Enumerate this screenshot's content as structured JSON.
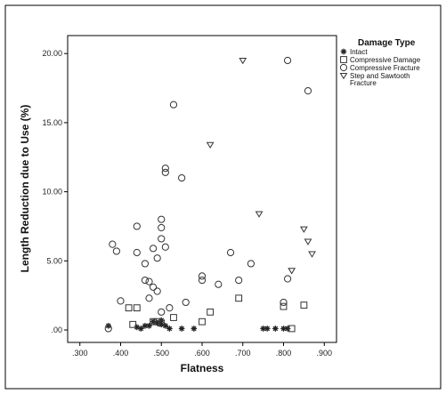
{
  "chart_data": {
    "type": "scatter",
    "title": "",
    "xlabel": "Flatness",
    "ylabel": "Length Reduction due to Use (%)",
    "xlim": [
      0.27,
      0.93
    ],
    "ylim": [
      -0.9,
      21.3
    ],
    "xticks": [
      ".300",
      ".400",
      ".500",
      ".600",
      ".700",
      ".800",
      ".900"
    ],
    "yticks": [
      ".00",
      "5.00",
      "10.00",
      "15.00",
      "20.00"
    ],
    "legend": {
      "title": "Damage Type",
      "position": "top-right"
    },
    "colors": {
      "marker_stroke": "#333333",
      "asterisk": "#222222",
      "frame": "#000000"
    },
    "series": [
      {
        "name": "Intact",
        "marker": "asterisk",
        "points": [
          [
            0.37,
            0.3
          ],
          [
            0.44,
            0.2
          ],
          [
            0.45,
            0.1
          ],
          [
            0.46,
            0.3
          ],
          [
            0.47,
            0.3
          ],
          [
            0.48,
            0.6
          ],
          [
            0.49,
            0.5
          ],
          [
            0.5,
            0.4
          ],
          [
            0.5,
            0.7
          ],
          [
            0.51,
            0.3
          ],
          [
            0.52,
            0.1
          ],
          [
            0.55,
            0.1
          ],
          [
            0.58,
            0.1
          ],
          [
            0.75,
            0.1
          ],
          [
            0.76,
            0.1
          ],
          [
            0.78,
            0.1
          ],
          [
            0.8,
            0.1
          ],
          [
            0.81,
            0.1
          ]
        ]
      },
      {
        "name": "Compressive Damage",
        "marker": "square",
        "points": [
          [
            0.42,
            1.6
          ],
          [
            0.43,
            0.4
          ],
          [
            0.44,
            1.6
          ],
          [
            0.48,
            0.6
          ],
          [
            0.49,
            0.6
          ],
          [
            0.5,
            0.5
          ],
          [
            0.53,
            0.9
          ],
          [
            0.6,
            0.6
          ],
          [
            0.62,
            1.3
          ],
          [
            0.69,
            2.3
          ],
          [
            0.8,
            1.7
          ],
          [
            0.82,
            0.1
          ],
          [
            0.85,
            1.8
          ]
        ]
      },
      {
        "name": "Compressive Fracture",
        "marker": "circle",
        "points": [
          [
            0.37,
            0.1
          ],
          [
            0.38,
            6.2
          ],
          [
            0.39,
            5.7
          ],
          [
            0.4,
            2.1
          ],
          [
            0.44,
            7.5
          ],
          [
            0.44,
            5.6
          ],
          [
            0.46,
            4.8
          ],
          [
            0.46,
            3.6
          ],
          [
            0.47,
            2.3
          ],
          [
            0.47,
            3.5
          ],
          [
            0.48,
            3.1
          ],
          [
            0.48,
            5.9
          ],
          [
            0.49,
            5.2
          ],
          [
            0.49,
            2.8
          ],
          [
            0.5,
            6.6
          ],
          [
            0.5,
            7.4
          ],
          [
            0.5,
            8.0
          ],
          [
            0.5,
            1.3
          ],
          [
            0.51,
            6.0
          ],
          [
            0.51,
            11.7
          ],
          [
            0.51,
            11.4
          ],
          [
            0.52,
            1.6
          ],
          [
            0.53,
            16.3
          ],
          [
            0.55,
            11.0
          ],
          [
            0.56,
            2.0
          ],
          [
            0.6,
            3.6
          ],
          [
            0.6,
            3.9
          ],
          [
            0.64,
            3.3
          ],
          [
            0.67,
            5.6
          ],
          [
            0.69,
            3.6
          ],
          [
            0.72,
            4.8
          ],
          [
            0.81,
            19.5
          ],
          [
            0.86,
            17.3
          ],
          [
            0.81,
            3.7
          ],
          [
            0.8,
            2.0
          ]
        ]
      },
      {
        "name": "Step and Sawtooth Fracture",
        "marker": "triangle-down",
        "points": [
          [
            0.62,
            13.4
          ],
          [
            0.7,
            19.5
          ],
          [
            0.74,
            8.4
          ],
          [
            0.82,
            4.3
          ],
          [
            0.85,
            7.3
          ],
          [
            0.86,
            6.4
          ],
          [
            0.87,
            5.5
          ]
        ]
      }
    ]
  }
}
